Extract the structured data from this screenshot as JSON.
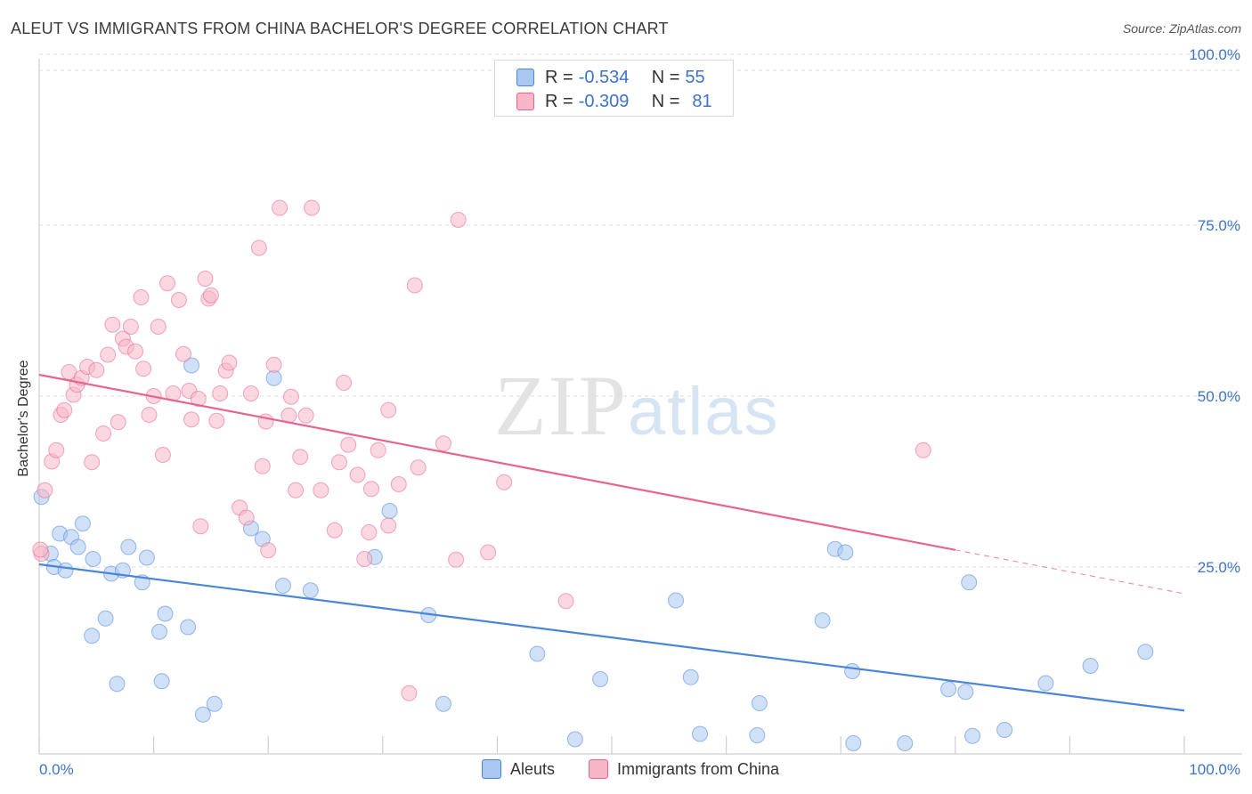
{
  "header": {
    "title": "ALEUT VS IMMIGRANTS FROM CHINA BACHELOR'S DEGREE CORRELATION CHART",
    "source": "Source: ZipAtlas.com"
  },
  "watermark": {
    "zip": "ZIP",
    "atlas": "atlas"
  },
  "legend": {
    "rows": [
      {
        "r_label": "R = ",
        "r_value": "-0.534",
        "n_label": "N = ",
        "n_value": "55",
        "color": "#a9c7f0"
      },
      {
        "r_label": "R = ",
        "r_value": "-0.309",
        "n_label": "N = ",
        "n_value": "81",
        "color": "#f7b7c9"
      }
    ]
  },
  "bottom_legend": [
    {
      "label": "Aleuts",
      "color": "#a9c7f0"
    },
    {
      "label": "Immigrants from China",
      "color": "#f7b7c9"
    }
  ],
  "chart_data": {
    "type": "scatter",
    "title": "ALEUT VS IMMIGRANTS FROM CHINA BACHELOR'S DEGREE CORRELATION CHART",
    "xlabel": "",
    "ylabel": "Bachelor's Degree",
    "xlim": [
      0,
      100
    ],
    "ylim": [
      0,
      100
    ],
    "x_tick_labels": [
      "0.0%",
      "100.0%"
    ],
    "y_tick_labels": [
      "25.0%",
      "50.0%",
      "75.0%",
      "100.0%"
    ],
    "y_ticks": [
      25,
      50,
      75,
      100
    ],
    "grid": true,
    "legend_position": "top-center",
    "series": [
      {
        "name": "Aleuts",
        "color": "#4a86d8",
        "fill": "#a9c7f0",
        "trend": {
          "x": [
            0,
            100
          ],
          "y": [
            28.4,
            6.5
          ],
          "solid_to": 100
        },
        "points": [
          [
            0.2,
            38.5
          ],
          [
            1.0,
            30.0
          ],
          [
            1.3,
            28.0
          ],
          [
            1.8,
            33.0
          ],
          [
            2.3,
            27.5
          ],
          [
            2.8,
            32.5
          ],
          [
            3.4,
            31.0
          ],
          [
            3.8,
            34.5
          ],
          [
            4.6,
            17.7
          ],
          [
            4.7,
            29.2
          ],
          [
            5.8,
            20.3
          ],
          [
            6.3,
            27.0
          ],
          [
            6.8,
            10.5
          ],
          [
            7.3,
            27.5
          ],
          [
            7.8,
            31.0
          ],
          [
            9.0,
            25.7
          ],
          [
            9.4,
            29.4
          ],
          [
            10.5,
            18.3
          ],
          [
            10.7,
            10.9
          ],
          [
            11.0,
            21.0
          ],
          [
            13.0,
            19.0
          ],
          [
            13.3,
            58.2
          ],
          [
            14.3,
            5.9
          ],
          [
            15.3,
            7.5
          ],
          [
            18.5,
            33.8
          ],
          [
            19.5,
            32.2
          ],
          [
            20.5,
            56.3
          ],
          [
            21.3,
            25.2
          ],
          [
            23.7,
            24.5
          ],
          [
            29.3,
            29.5
          ],
          [
            30.6,
            36.4
          ],
          [
            34.0,
            20.8
          ],
          [
            35.3,
            7.5
          ],
          [
            43.5,
            15.0
          ],
          [
            46.8,
            2.2
          ],
          [
            49.0,
            11.2
          ],
          [
            55.6,
            23.0
          ],
          [
            56.9,
            11.5
          ],
          [
            57.7,
            3.0
          ],
          [
            62.7,
            2.8
          ],
          [
            62.9,
            7.6
          ],
          [
            68.4,
            20.0
          ],
          [
            69.5,
            30.7
          ],
          [
            70.4,
            30.2
          ],
          [
            71.0,
            12.4
          ],
          [
            71.1,
            1.6
          ],
          [
            75.6,
            1.6
          ],
          [
            79.4,
            9.7
          ],
          [
            80.9,
            9.3
          ],
          [
            81.2,
            25.7
          ],
          [
            81.5,
            2.7
          ],
          [
            84.3,
            3.6
          ],
          [
            87.9,
            10.6
          ],
          [
            91.8,
            13.2
          ],
          [
            96.6,
            15.3
          ]
        ]
      },
      {
        "name": "Immigrants from China",
        "color": "#e8648f",
        "fill": "#f7b7c9",
        "trend": {
          "x": [
            0,
            100
          ],
          "y": [
            56.8,
            24.0
          ],
          "solid_to": 80
        },
        "points": [
          [
            0.2,
            30.0
          ],
          [
            0.5,
            39.5
          ],
          [
            1.1,
            43.8
          ],
          [
            1.5,
            45.5
          ],
          [
            1.9,
            50.8
          ],
          [
            2.2,
            51.5
          ],
          [
            2.6,
            57.2
          ],
          [
            3.0,
            53.8
          ],
          [
            3.3,
            55.3
          ],
          [
            3.7,
            56.3
          ],
          [
            4.2,
            58.0
          ],
          [
            4.6,
            43.7
          ],
          [
            5.0,
            57.5
          ],
          [
            5.6,
            48.0
          ],
          [
            6.0,
            59.8
          ],
          [
            6.4,
            64.3
          ],
          [
            6.9,
            49.7
          ],
          [
            7.3,
            62.2
          ],
          [
            7.6,
            61.0
          ],
          [
            8.0,
            64.0
          ],
          [
            8.4,
            60.3
          ],
          [
            8.9,
            68.4
          ],
          [
            9.1,
            57.7
          ],
          [
            9.6,
            50.8
          ],
          [
            10.0,
            53.6
          ],
          [
            10.4,
            64.0
          ],
          [
            10.8,
            44.8
          ],
          [
            11.2,
            70.5
          ],
          [
            11.7,
            54.0
          ],
          [
            12.2,
            68.0
          ],
          [
            12.6,
            59.9
          ],
          [
            13.1,
            54.4
          ],
          [
            13.3,
            50.1
          ],
          [
            13.9,
            53.2
          ],
          [
            14.1,
            34.1
          ],
          [
            14.5,
            71.2
          ],
          [
            14.8,
            68.2
          ],
          [
            15.0,
            68.7
          ],
          [
            15.5,
            49.9
          ],
          [
            15.8,
            54.0
          ],
          [
            16.3,
            57.4
          ],
          [
            16.6,
            58.6
          ],
          [
            17.5,
            36.9
          ],
          [
            18.1,
            35.4
          ],
          [
            18.5,
            54.0
          ],
          [
            19.2,
            75.8
          ],
          [
            19.5,
            43.1
          ],
          [
            19.8,
            49.8
          ],
          [
            20.0,
            30.5
          ],
          [
            20.5,
            58.3
          ],
          [
            21.0,
            81.8
          ],
          [
            21.8,
            50.7
          ],
          [
            22.0,
            53.5
          ],
          [
            22.4,
            39.5
          ],
          [
            22.8,
            44.5
          ],
          [
            23.3,
            50.7
          ],
          [
            23.8,
            81.8
          ],
          [
            24.6,
            39.5
          ],
          [
            25.8,
            33.5
          ],
          [
            26.2,
            43.7
          ],
          [
            26.6,
            55.6
          ],
          [
            27.0,
            46.3
          ],
          [
            27.8,
            41.8
          ],
          [
            28.4,
            29.2
          ],
          [
            28.8,
            33.2
          ],
          [
            29.0,
            39.7
          ],
          [
            29.6,
            45.5
          ],
          [
            30.5,
            51.5
          ],
          [
            30.5,
            34.2
          ],
          [
            31.4,
            40.4
          ],
          [
            33.1,
            42.9
          ],
          [
            35.3,
            46.5
          ],
          [
            36.4,
            29.1
          ],
          [
            36.6,
            80.0
          ],
          [
            39.2,
            30.2
          ],
          [
            40.6,
            40.7
          ],
          [
            46.0,
            22.9
          ],
          [
            32.3,
            9.1
          ],
          [
            32.8,
            70.2
          ],
          [
            77.2,
            45.5
          ],
          [
            0.1,
            30.6
          ]
        ]
      }
    ]
  }
}
